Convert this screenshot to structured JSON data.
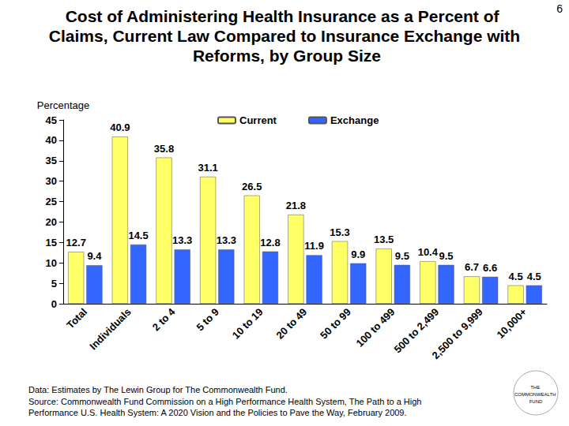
{
  "chart_data": {
    "type": "bar",
    "title": "Cost of Administering Health Insurance as a Percent of Claims, Current Law Compared to Insurance Exchange with Reforms, by Group Size",
    "y_label": "Percentage",
    "categories": [
      "Total",
      "Individuals",
      "2 to 4",
      "5 to 9",
      "10 to 19",
      "20 to 49",
      "50 to 99",
      "100 to 499",
      "500 to 2,499",
      "2,500 to 9,999",
      "10,000+"
    ],
    "series": [
      {
        "name": "Current",
        "color": "#ffff66",
        "values": [
          12.7,
          40.9,
          35.8,
          31.1,
          26.5,
          21.8,
          15.3,
          13.5,
          10.4,
          6.7,
          4.5
        ]
      },
      {
        "name": "Exchange",
        "color": "#3366ff",
        "values": [
          9.4,
          14.5,
          13.3,
          13.3,
          12.8,
          11.9,
          9.9,
          9.5,
          9.5,
          6.6,
          4.5
        ]
      }
    ],
    "ylim": [
      0,
      45
    ],
    "yticks": [
      0,
      5,
      10,
      15,
      20,
      25,
      30,
      35,
      40,
      45
    ],
    "grid": false,
    "legend": "top",
    "data_labels": true,
    "annotations": [
      "6",
      "Data: Estimates by The Lewin Group for The Commonwealth Fund.",
      "Source: Commonwealth Fund Commission on a High Performance Health System, The Path to a High Performance U.S. Health System: A 2020 Vision and the Policies to Pave the Way, February 2009.",
      "THE COMMONWEALTH FUND"
    ]
  }
}
